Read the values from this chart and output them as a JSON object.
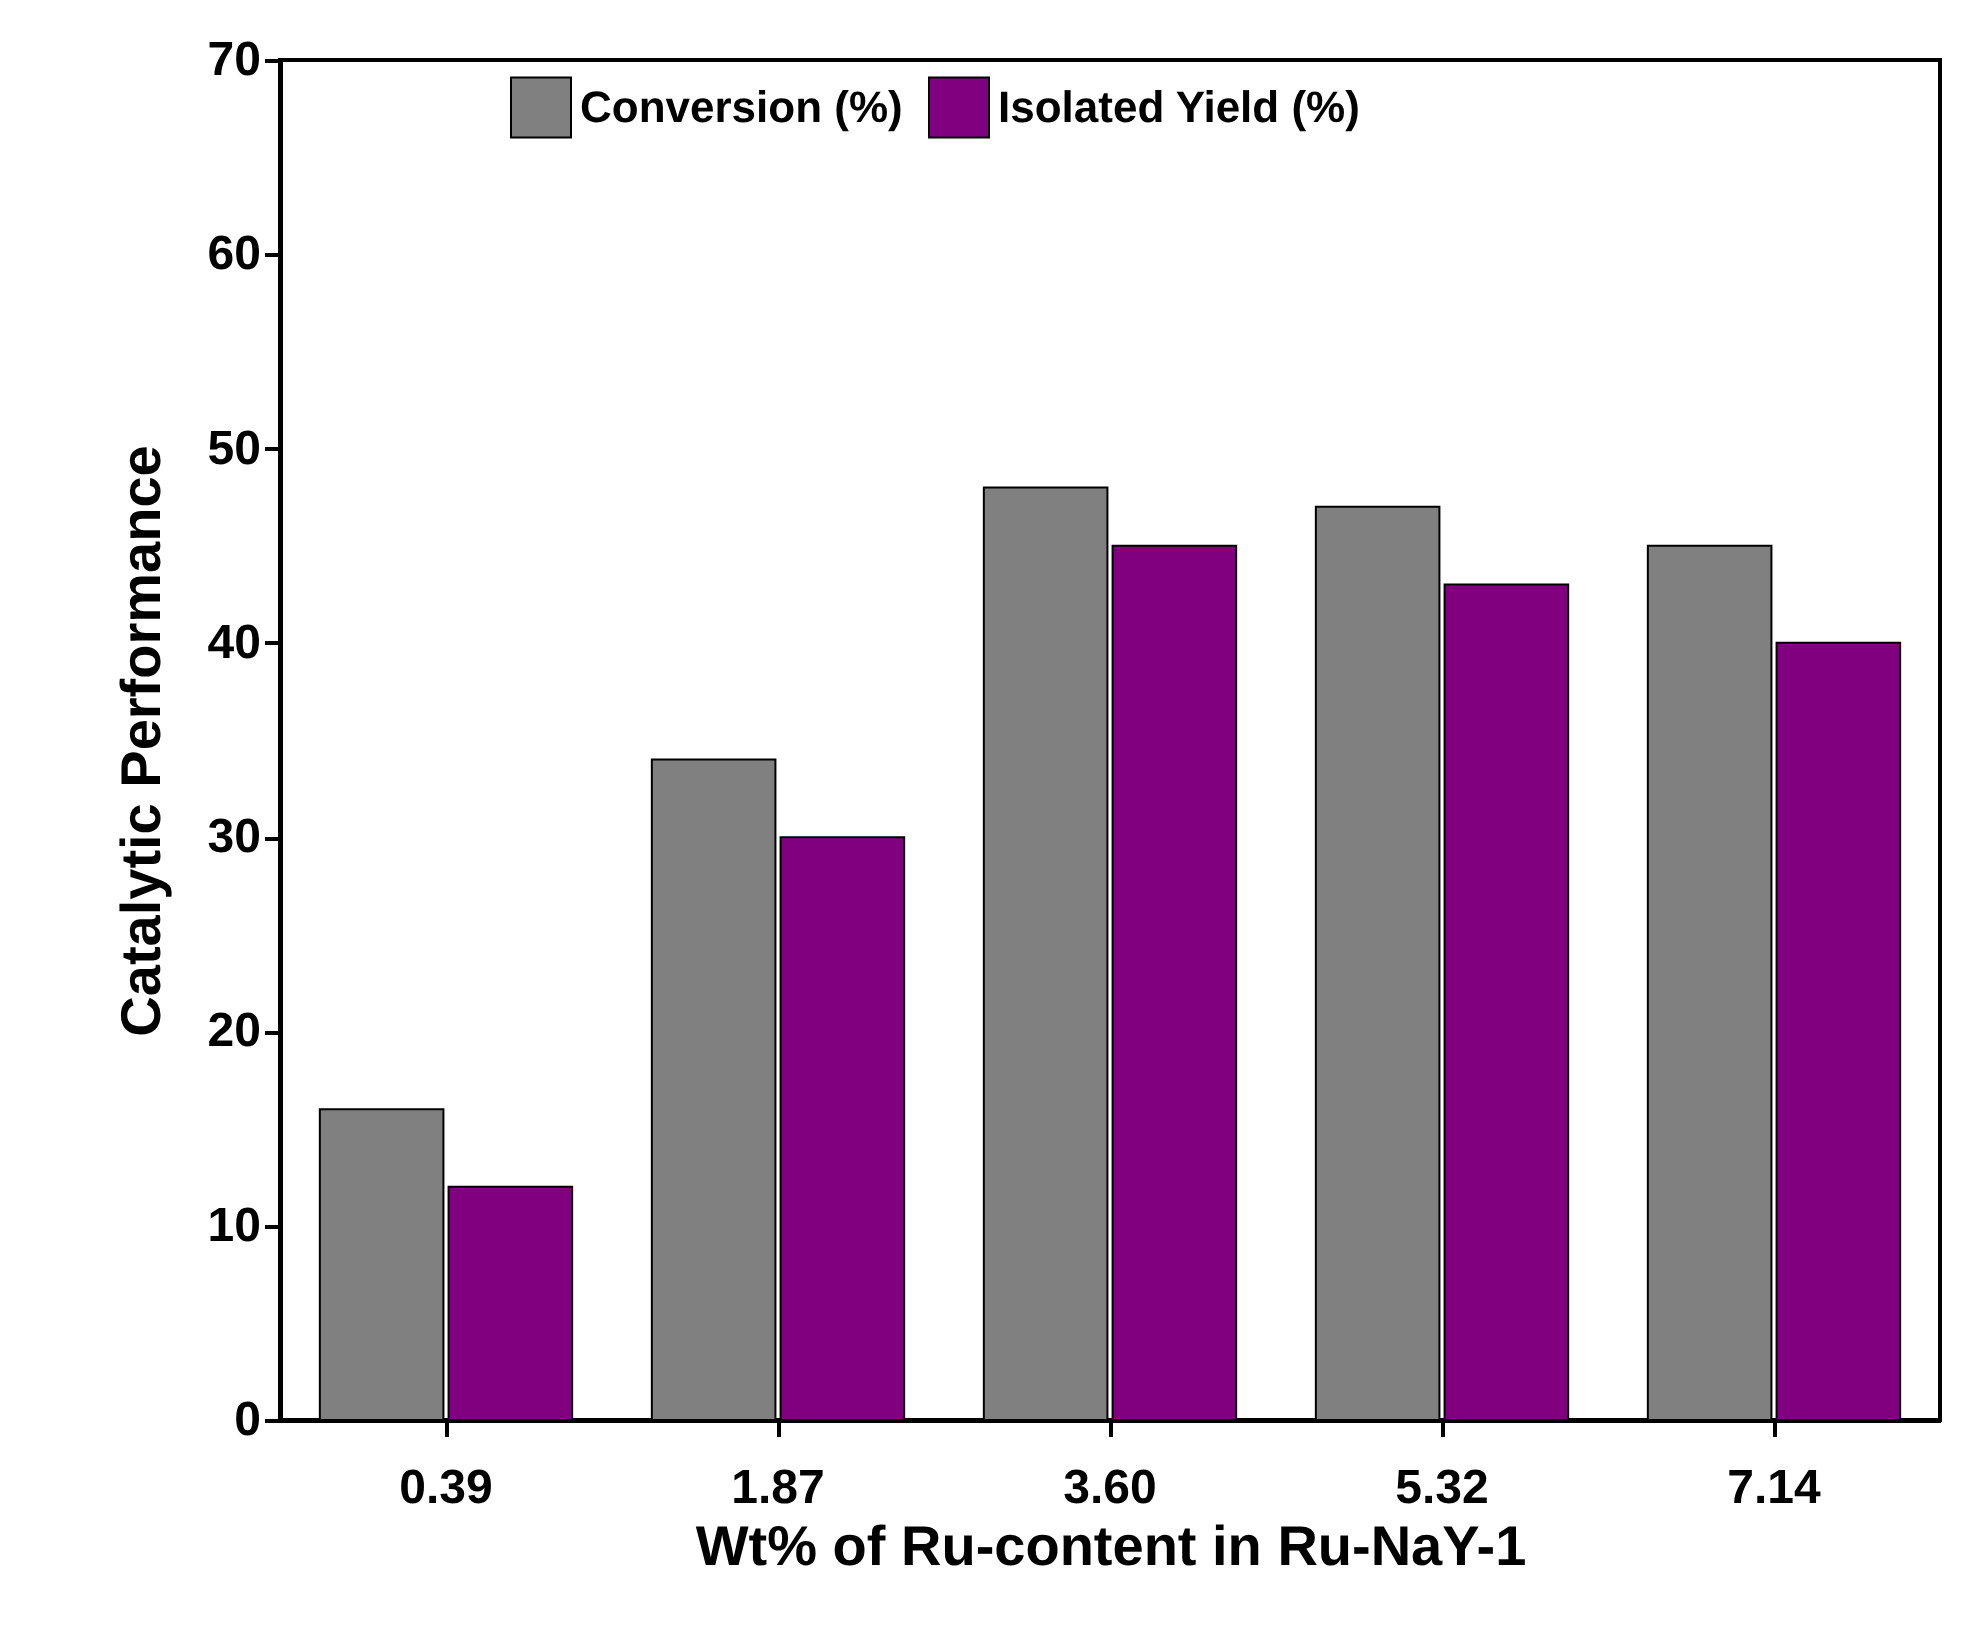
{
  "chart_data": {
    "type": "bar",
    "xlabel": "Wt% of Ru-content in Ru-NaY-1",
    "ylabel": "Catalytic Performance",
    "categories": [
      "0.39",
      "1.87",
      "3.60",
      "5.32",
      "7.14"
    ],
    "series": [
      {
        "name": "Conversion (%)",
        "color": "#808080",
        "values": [
          16,
          34,
          48,
          47,
          45
        ]
      },
      {
        "name": "Isolated Yield (%)",
        "color": "#800080",
        "values": [
          12,
          30,
          45,
          43,
          40
        ]
      }
    ],
    "ylim": [
      0,
      70
    ],
    "yticks": [
      0,
      10,
      20,
      30,
      40,
      50,
      60,
      70
    ],
    "grid": false,
    "legend": "top"
  }
}
